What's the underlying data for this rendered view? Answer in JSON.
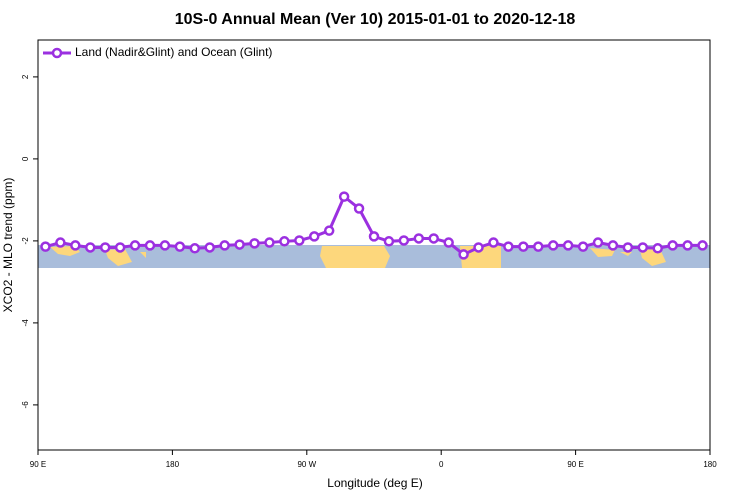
{
  "chart_data": {
    "type": "line",
    "title": "10S-0 Annual Mean (Ver 10)   2015-01-01 to 2020-12-18",
    "x_label": "Longitude (deg E)",
    "y_label": "XCO2 - MLO trend (ppm)",
    "x": [
      95,
      105,
      115,
      125,
      135,
      145,
      155,
      165,
      175,
      185,
      195,
      205,
      215,
      225,
      235,
      245,
      255,
      265,
      275,
      285,
      295,
      305,
      315,
      325,
      335,
      345,
      355,
      365,
      375,
      385,
      395,
      405,
      415,
      425,
      435,
      445,
      455,
      465,
      475,
      485,
      495,
      505,
      515,
      525,
      535
    ],
    "series": [
      {
        "name": "Land (Nadir&Glint) and Ocean (Glint)",
        "color": "#9b30e0",
        "values": [
          -2.14,
          -2.04,
          -2.11,
          -2.16,
          -2.16,
          -2.16,
          -2.11,
          -2.11,
          -2.11,
          -2.14,
          -2.18,
          -2.16,
          -2.11,
          -2.09,
          -2.06,
          -2.04,
          -2.01,
          -1.99,
          -1.89,
          -1.75,
          -0.92,
          -1.21,
          -1.89,
          -2.01,
          -1.99,
          -1.94,
          -1.94,
          -2.04,
          -2.33,
          -2.16,
          -2.04,
          -2.14,
          -2.14,
          -2.14,
          -2.11,
          -2.11,
          -2.14,
          -2.04,
          -2.11,
          -2.16,
          -2.16,
          -2.18,
          -2.11,
          -2.11,
          -2.11
        ]
      }
    ],
    "xlim": [
      90,
      540
    ],
    "xticks": [
      {
        "value": 90,
        "label": "90 E"
      },
      {
        "value": 180,
        "label": "180"
      },
      {
        "value": 270,
        "label": "90 W"
      },
      {
        "value": 360,
        "label": "0"
      },
      {
        "value": 450,
        "label": "90 E"
      },
      {
        "value": 540,
        "label": "180"
      }
    ],
    "ylim": [
      -7.1,
      2.9
    ],
    "yticks": [
      2,
      0,
      -2,
      -4,
      -6
    ],
    "legend": "top-left"
  }
}
